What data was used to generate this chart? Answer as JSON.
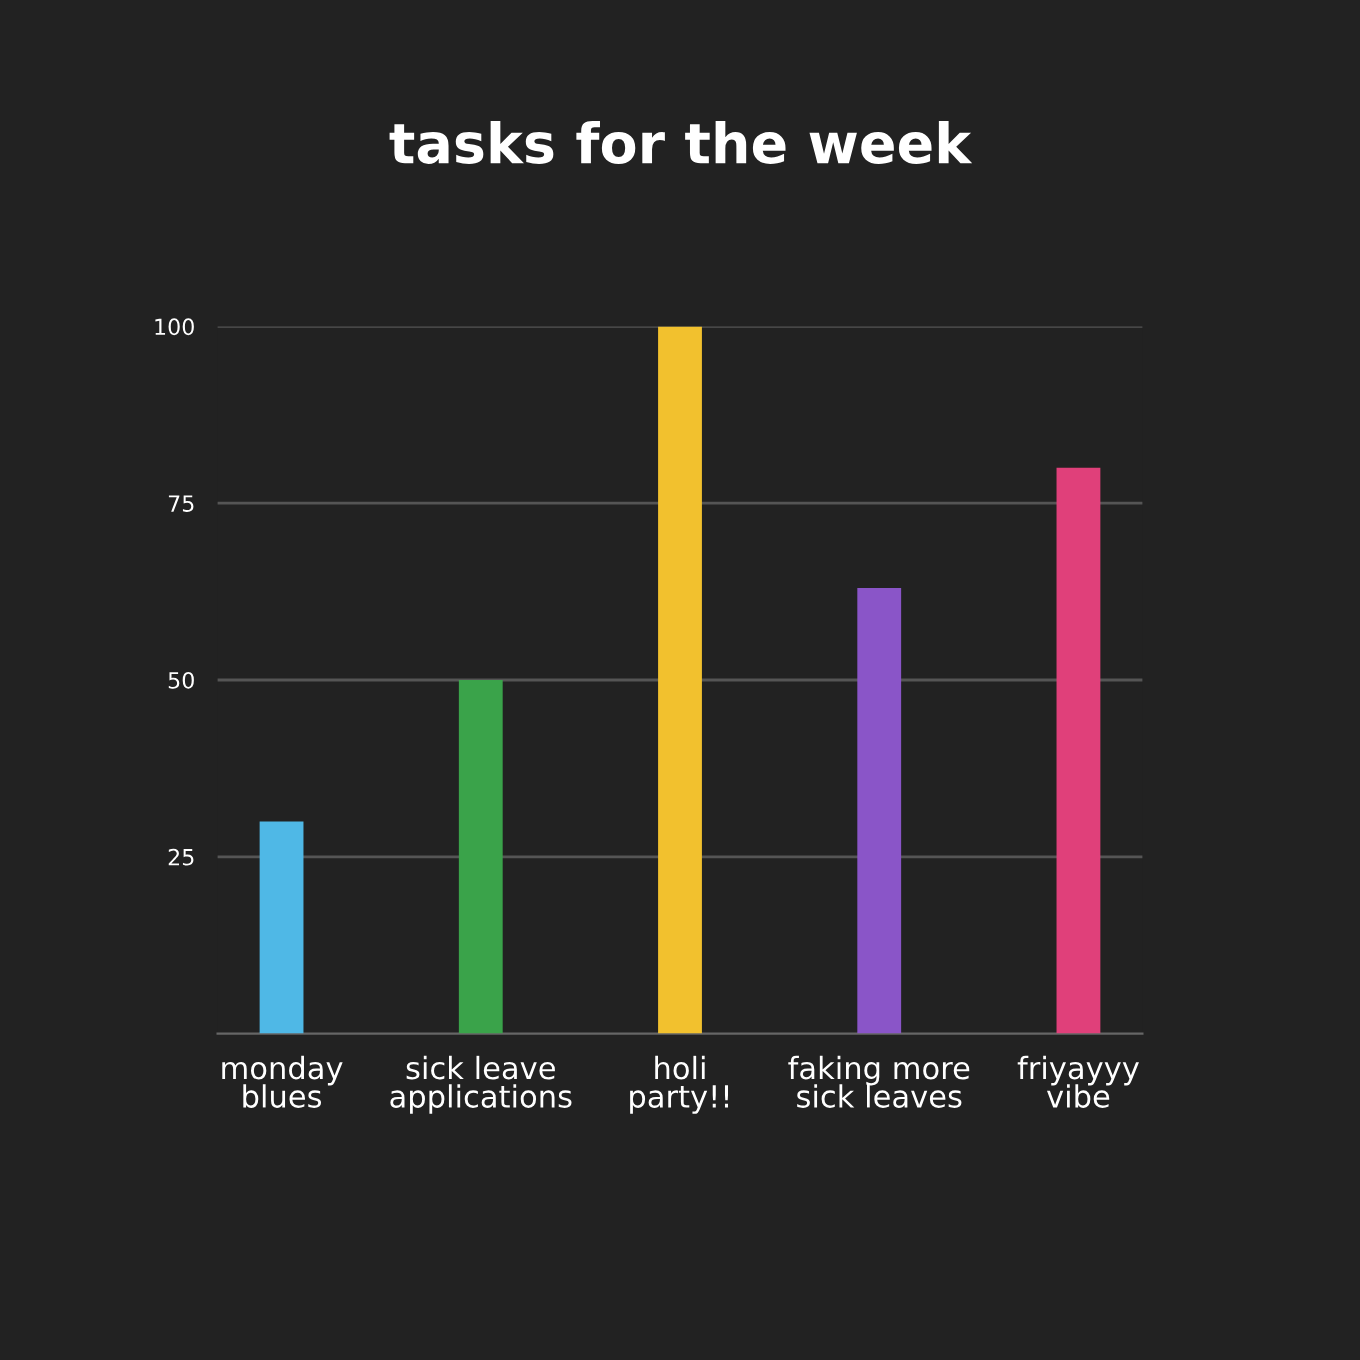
{
  "chart_data": {
    "type": "bar",
    "title": "tasks for the week",
    "categories": [
      "monday\nblues",
      "sick leave\napplications",
      "holi\nparty!!",
      "faking more\nsick leaves",
      "friyayyy\nvibe"
    ],
    "values": [
      30,
      50,
      100,
      63,
      80
    ],
    "colors": [
      "#4fb8e6",
      "#3aa34a",
      "#f2c12e",
      "#8a55c8",
      "#e0407a"
    ],
    "ylim": [
      0,
      100
    ],
    "yticks": [
      25,
      50,
      75,
      100
    ],
    "grid": "y"
  }
}
